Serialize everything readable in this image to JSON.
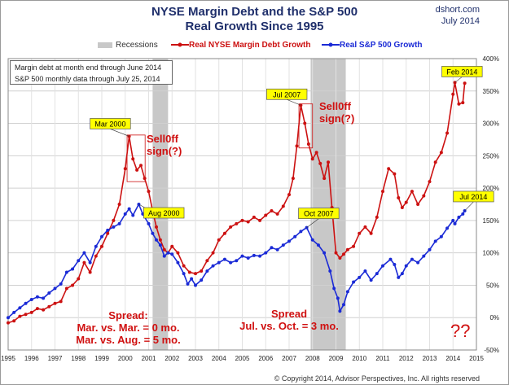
{
  "header": {
    "title_line1": "NYSE Margin Debt and the S&P 500",
    "title_line2": "Real Growth Since 1995",
    "brand": "dshort.com",
    "date": "July 2014"
  },
  "legend": {
    "recessions": "Recessions",
    "margin": "Real NYSE Margin Debt Growth",
    "sp500": "Real S&P 500 Growth"
  },
  "note": {
    "line1": "Margin debt at month end through June 2014",
    "line2": "S&P 500 monthly data through July 25, 2014"
  },
  "annotations": {
    "sell_off_1": "Sell0ff",
    "sell_off_1b": "sign(?)",
    "sell_off_2": "Sell0ff",
    "sell_off_2b": "sign(?)",
    "spread1_title": "Spread:",
    "spread1_line1": "Mar. vs. Mar. = 0 mo.",
    "spread1_line2": "Mar. vs. Aug. = 5 mo.",
    "spread2_title": "Spread",
    "spread2_line1": "Jul. vs. Oct. = 3 mo.",
    "question": "??"
  },
  "copyright": "© Copyright 2014, Advisor Perspectives, Inc. All rights reserved",
  "colors": {
    "margin": "#cc1111",
    "sp500": "#1a2ad6",
    "recession": "#c8c8c8",
    "callout": "#ffff00"
  },
  "chart_data": {
    "type": "line",
    "x_tick_labels": [
      "1995",
      "1996",
      "1997",
      "1998",
      "1999",
      "2000",
      "2001",
      "2002",
      "2003",
      "2004",
      "2005",
      "2006",
      "2007",
      "2008",
      "2009",
      "2010",
      "2011",
      "2012",
      "2013",
      "2014",
      "2015"
    ],
    "y_tick_labels": [
      "-50%",
      "0%",
      "50%",
      "100%",
      "150%",
      "200%",
      "250%",
      "300%",
      "350%",
      "400%"
    ],
    "xlim": [
      1995,
      2015
    ],
    "ylim": [
      -50,
      400
    ],
    "grid": true,
    "legend_position": "top",
    "recessions": [
      [
        2001.17,
        2001.83
      ],
      [
        2007.92,
        2009.42
      ]
    ],
    "callouts": [
      {
        "label": "Mar 2000",
        "x": 2000.17,
        "y": 280
      },
      {
        "label": "Aug 2000",
        "x": 2000.58,
        "y": 175
      },
      {
        "label": "Jul 2007",
        "x": 2007.5,
        "y": 328
      },
      {
        "label": "Oct 2007",
        "x": 2007.75,
        "y": 139
      },
      {
        "label": "Feb 2014",
        "x": 2014.08,
        "y": 363
      },
      {
        "label": "Jul 2014",
        "x": 2014.5,
        "y": 165
      }
    ],
    "series": [
      {
        "name": "Real NYSE Margin Debt Growth",
        "color": "#cc1111",
        "points": [
          [
            1995.0,
            -8
          ],
          [
            1995.25,
            -5
          ],
          [
            1995.5,
            2
          ],
          [
            1995.75,
            5
          ],
          [
            1996.0,
            8
          ],
          [
            1996.25,
            14
          ],
          [
            1996.5,
            12
          ],
          [
            1996.75,
            17
          ],
          [
            1997.0,
            22
          ],
          [
            1997.25,
            25
          ],
          [
            1997.5,
            45
          ],
          [
            1997.75,
            50
          ],
          [
            1998.0,
            60
          ],
          [
            1998.25,
            85
          ],
          [
            1998.5,
            70
          ],
          [
            1998.75,
            95
          ],
          [
            1999.0,
            110
          ],
          [
            1999.25,
            130
          ],
          [
            1999.5,
            150
          ],
          [
            1999.75,
            175
          ],
          [
            2000.0,
            230
          ],
          [
            2000.17,
            280
          ],
          [
            2000.33,
            245
          ],
          [
            2000.5,
            228
          ],
          [
            2000.67,
            235
          ],
          [
            2000.83,
            215
          ],
          [
            2001.0,
            195
          ],
          [
            2001.17,
            165
          ],
          [
            2001.33,
            140
          ],
          [
            2001.5,
            120
          ],
          [
            2001.67,
            105
          ],
          [
            2001.83,
            100
          ],
          [
            2002.0,
            110
          ],
          [
            2002.25,
            100
          ],
          [
            2002.5,
            80
          ],
          [
            2002.75,
            70
          ],
          [
            2003.0,
            68
          ],
          [
            2003.25,
            72
          ],
          [
            2003.5,
            88
          ],
          [
            2003.75,
            100
          ],
          [
            2004.0,
            120
          ],
          [
            2004.25,
            130
          ],
          [
            2004.5,
            140
          ],
          [
            2004.75,
            145
          ],
          [
            2005.0,
            150
          ],
          [
            2005.25,
            148
          ],
          [
            2005.5,
            155
          ],
          [
            2005.75,
            150
          ],
          [
            2006.0,
            158
          ],
          [
            2006.25,
            165
          ],
          [
            2006.5,
            160
          ],
          [
            2006.75,
            172
          ],
          [
            2007.0,
            190
          ],
          [
            2007.17,
            215
          ],
          [
            2007.33,
            265
          ],
          [
            2007.5,
            328
          ],
          [
            2007.67,
            300
          ],
          [
            2007.83,
            268
          ],
          [
            2008.0,
            245
          ],
          [
            2008.17,
            255
          ],
          [
            2008.33,
            238
          ],
          [
            2008.5,
            215
          ],
          [
            2008.67,
            240
          ],
          [
            2008.83,
            170
          ],
          [
            2009.0,
            100
          ],
          [
            2009.17,
            92
          ],
          [
            2009.33,
            98
          ],
          [
            2009.5,
            105
          ],
          [
            2009.75,
            110
          ],
          [
            2010.0,
            130
          ],
          [
            2010.25,
            140
          ],
          [
            2010.5,
            130
          ],
          [
            2010.75,
            155
          ],
          [
            2011.0,
            195
          ],
          [
            2011.25,
            230
          ],
          [
            2011.5,
            222
          ],
          [
            2011.67,
            185
          ],
          [
            2011.83,
            170
          ],
          [
            2012.0,
            178
          ],
          [
            2012.25,
            195
          ],
          [
            2012.5,
            175
          ],
          [
            2012.75,
            188
          ],
          [
            2013.0,
            210
          ],
          [
            2013.25,
            240
          ],
          [
            2013.5,
            255
          ],
          [
            2013.75,
            285
          ],
          [
            2014.0,
            345
          ],
          [
            2014.08,
            363
          ],
          [
            2014.25,
            330
          ],
          [
            2014.42,
            332
          ],
          [
            2014.5,
            362
          ]
        ]
      },
      {
        "name": "Real S&P 500 Growth",
        "color": "#1a2ad6",
        "points": [
          [
            1995.0,
            0
          ],
          [
            1995.25,
            8
          ],
          [
            1995.5,
            15
          ],
          [
            1995.75,
            22
          ],
          [
            1996.0,
            28
          ],
          [
            1996.25,
            32
          ],
          [
            1996.5,
            30
          ],
          [
            1996.75,
            38
          ],
          [
            1997.0,
            45
          ],
          [
            1997.25,
            52
          ],
          [
            1997.5,
            70
          ],
          [
            1997.75,
            75
          ],
          [
            1998.0,
            88
          ],
          [
            1998.25,
            100
          ],
          [
            1998.5,
            85
          ],
          [
            1998.75,
            110
          ],
          [
            1999.0,
            125
          ],
          [
            1999.25,
            135
          ],
          [
            1999.5,
            140
          ],
          [
            1999.75,
            145
          ],
          [
            2000.0,
            160
          ],
          [
            2000.17,
            168
          ],
          [
            2000.33,
            158
          ],
          [
            2000.58,
            175
          ],
          [
            2000.75,
            160
          ],
          [
            2001.0,
            145
          ],
          [
            2001.17,
            130
          ],
          [
            2001.33,
            120
          ],
          [
            2001.5,
            112
          ],
          [
            2001.67,
            95
          ],
          [
            2001.83,
            100
          ],
          [
            2002.0,
            98
          ],
          [
            2002.25,
            85
          ],
          [
            2002.5,
            68
          ],
          [
            2002.67,
            52
          ],
          [
            2002.83,
            60
          ],
          [
            2003.0,
            50
          ],
          [
            2003.25,
            58
          ],
          [
            2003.5,
            72
          ],
          [
            2003.75,
            80
          ],
          [
            2004.0,
            85
          ],
          [
            2004.25,
            90
          ],
          [
            2004.5,
            85
          ],
          [
            2004.75,
            88
          ],
          [
            2005.0,
            95
          ],
          [
            2005.25,
            92
          ],
          [
            2005.5,
            96
          ],
          [
            2005.75,
            95
          ],
          [
            2006.0,
            100
          ],
          [
            2006.25,
            108
          ],
          [
            2006.5,
            105
          ],
          [
            2006.75,
            112
          ],
          [
            2007.0,
            118
          ],
          [
            2007.25,
            125
          ],
          [
            2007.5,
            133
          ],
          [
            2007.75,
            139
          ],
          [
            2008.0,
            120
          ],
          [
            2008.25,
            112
          ],
          [
            2008.5,
            100
          ],
          [
            2008.75,
            72
          ],
          [
            2008.92,
            45
          ],
          [
            2009.08,
            30
          ],
          [
            2009.17,
            10
          ],
          [
            2009.33,
            20
          ],
          [
            2009.5,
            40
          ],
          [
            2009.75,
            55
          ],
          [
            2010.0,
            62
          ],
          [
            2010.25,
            72
          ],
          [
            2010.5,
            58
          ],
          [
            2010.75,
            68
          ],
          [
            2011.0,
            80
          ],
          [
            2011.33,
            90
          ],
          [
            2011.5,
            82
          ],
          [
            2011.67,
            62
          ],
          [
            2011.83,
            68
          ],
          [
            2012.0,
            80
          ],
          [
            2012.25,
            90
          ],
          [
            2012.5,
            85
          ],
          [
            2012.75,
            95
          ],
          [
            2013.0,
            105
          ],
          [
            2013.25,
            118
          ],
          [
            2013.5,
            125
          ],
          [
            2013.75,
            138
          ],
          [
            2014.0,
            150
          ],
          [
            2014.08,
            145
          ],
          [
            2014.25,
            155
          ],
          [
            2014.42,
            160
          ],
          [
            2014.5,
            165
          ]
        ]
      }
    ]
  }
}
